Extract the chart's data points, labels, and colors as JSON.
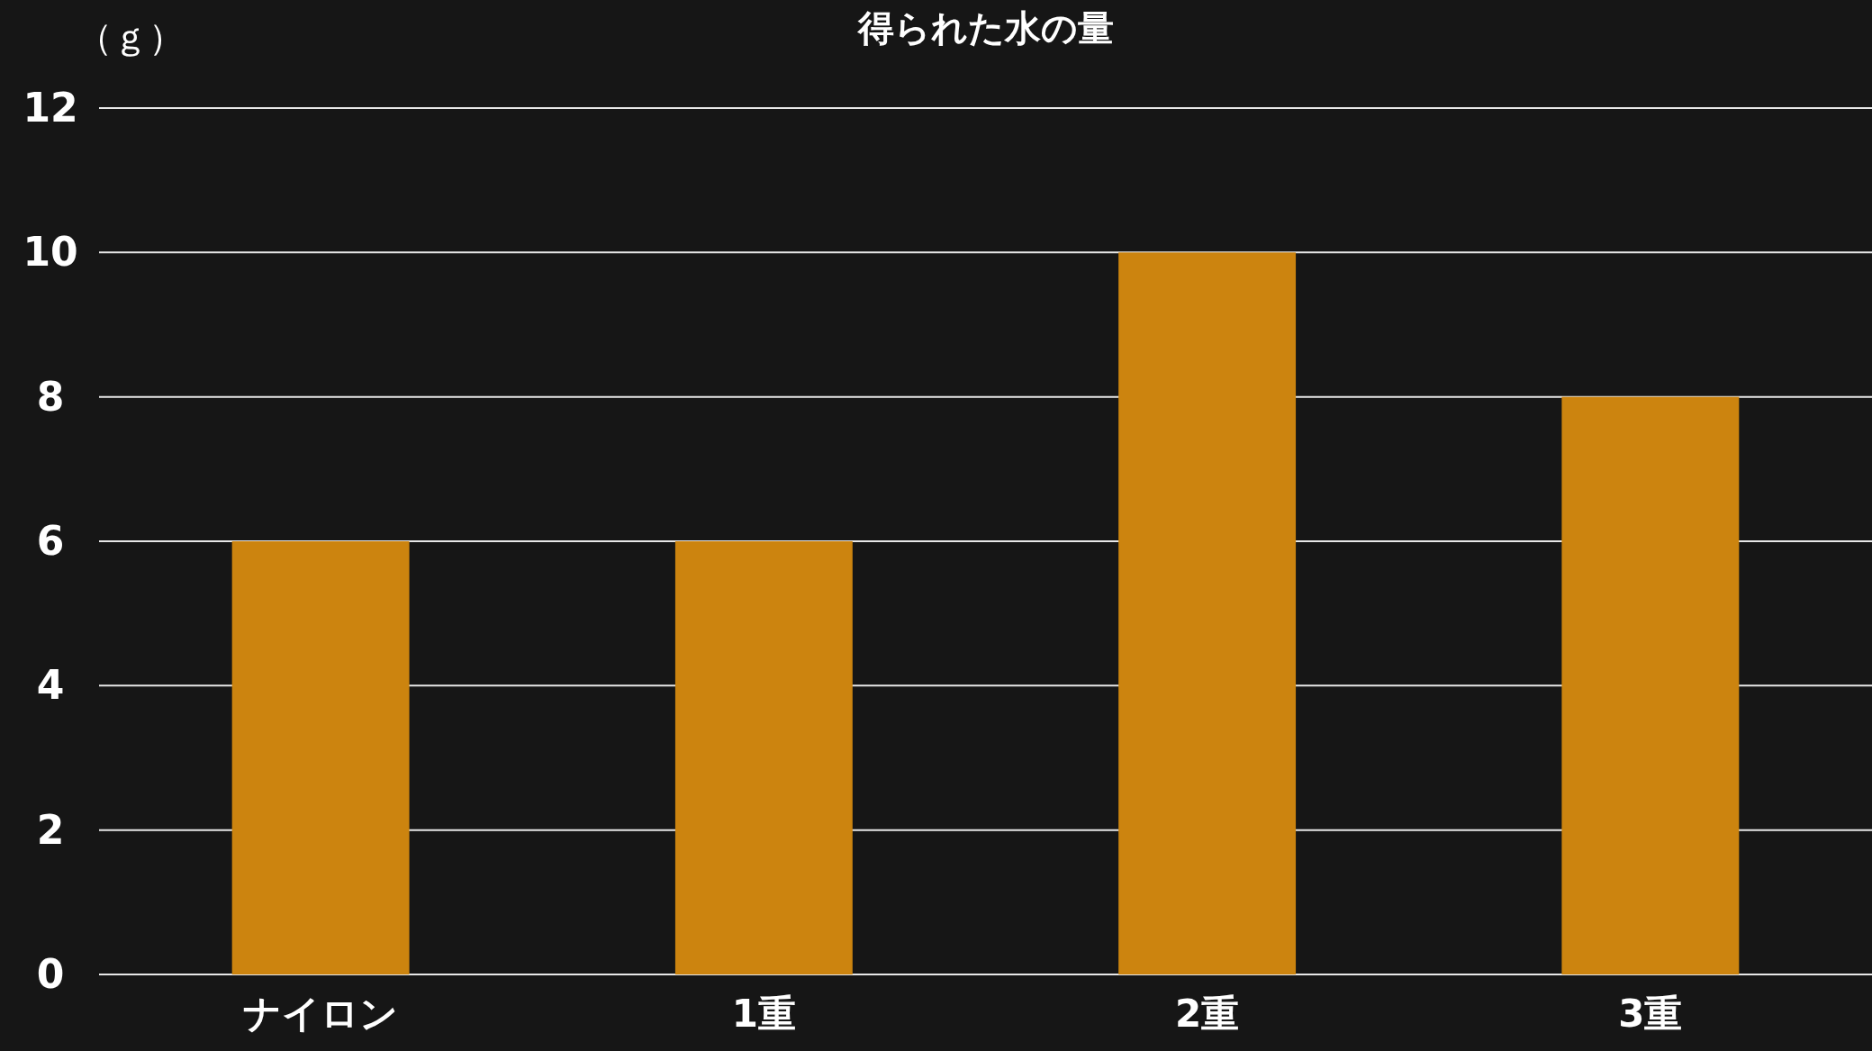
{
  "chart_data": {
    "type": "bar",
    "title": "得られた水の量",
    "ylabel": "（ｇ）",
    "categories": [
      "ナイロン",
      "1重",
      "2重",
      "3重"
    ],
    "values": [
      6,
      6,
      10,
      8
    ],
    "color": "#cc840f",
    "ylim": [
      0,
      12
    ],
    "yticks": [
      0,
      2,
      4,
      6,
      8,
      10,
      12
    ],
    "grid": "y"
  }
}
